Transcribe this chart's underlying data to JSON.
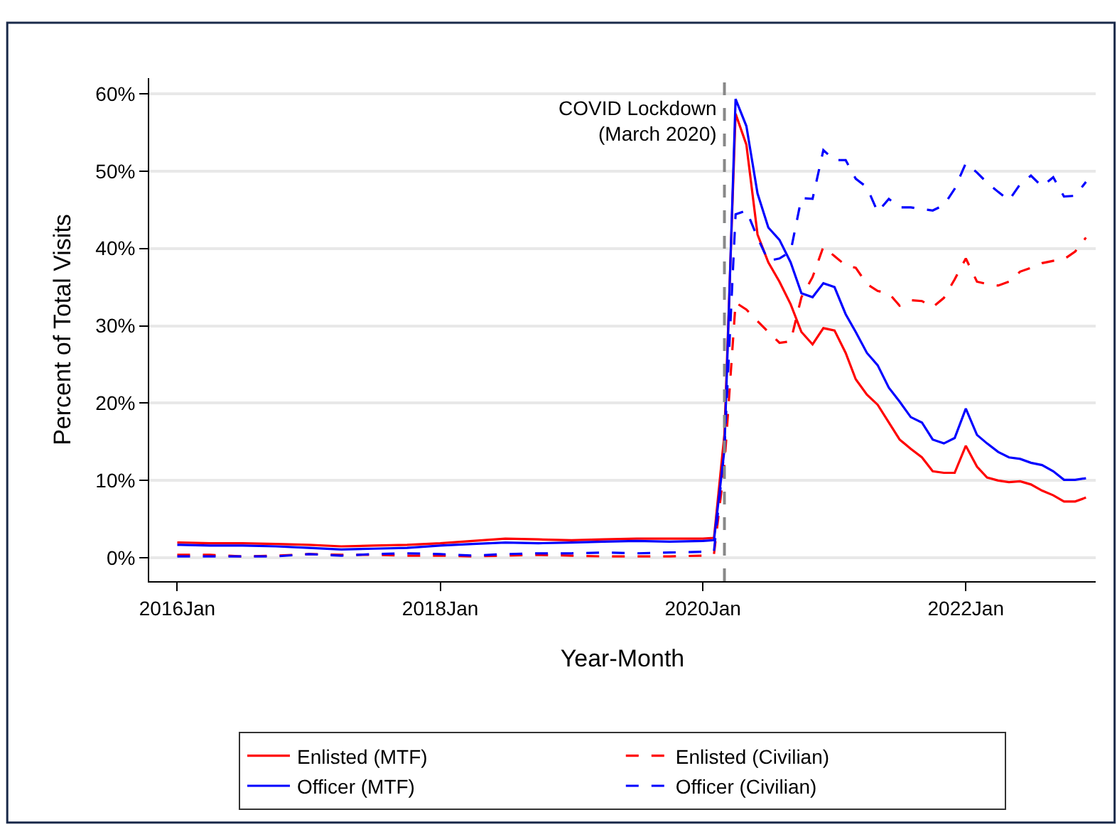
{
  "chart_data": {
    "type": "line",
    "xlabel": "Year-Month",
    "ylabel": "Percent of Total Visits",
    "x": [
      "2016-01",
      "2016-04",
      "2016-07",
      "2016-10",
      "2017-01",
      "2017-04",
      "2017-07",
      "2017-10",
      "2018-01",
      "2018-04",
      "2018-07",
      "2018-10",
      "2019-01",
      "2019-04",
      "2019-07",
      "2019-10",
      "2020-01",
      "2020-02",
      "2020-03",
      "2020-04",
      "2020-05",
      "2020-06",
      "2020-07",
      "2020-08",
      "2020-09",
      "2020-10",
      "2020-11",
      "2020-12",
      "2021-01",
      "2021-02",
      "2021-03",
      "2021-04",
      "2021-05",
      "2021-06",
      "2021-07",
      "2021-08",
      "2021-09",
      "2021-10",
      "2021-11",
      "2021-12",
      "2022-01",
      "2022-02",
      "2022-03",
      "2022-04",
      "2022-05",
      "2022-06",
      "2022-07",
      "2022-08",
      "2022-09",
      "2022-10",
      "2022-11",
      "2022-12"
    ],
    "series": [
      {
        "name": "Enlisted (MTF)",
        "color": "#ff0000",
        "line_style": "solid",
        "values": [
          2.0,
          1.9,
          1.9,
          1.8,
          1.7,
          1.5,
          1.6,
          1.7,
          1.9,
          2.2,
          2.5,
          2.4,
          2.3,
          2.4,
          2.5,
          2.5,
          2.5,
          2.6,
          16,
          57.4,
          53.4,
          41.8,
          38.2,
          35.7,
          32.8,
          29.2,
          27.6,
          29.7,
          29.4,
          26.5,
          23.1,
          21.1,
          19.8,
          17.5,
          15.3,
          14.1,
          13.0,
          11.2,
          11.0,
          11.0,
          14.5,
          11.8,
          10.4,
          10.0,
          9.8,
          9.9,
          9.5,
          8.7,
          8.1,
          7.3,
          7.3,
          7.8
        ]
      },
      {
        "name": "Enlisted (Civilian)",
        "color": "#ff0000",
        "line_style": "dashed",
        "values": [
          0.4,
          0.4,
          0.2,
          0.3,
          0.5,
          0.4,
          0.4,
          0.3,
          0.3,
          0.2,
          0.3,
          0.4,
          0.3,
          0.2,
          0.2,
          0.2,
          0.3,
          0.5,
          12,
          33.0,
          32.1,
          30.6,
          29.2,
          27.8,
          28.0,
          33.7,
          36.3,
          40.2,
          39.0,
          37.8,
          37.5,
          35.4,
          34.5,
          34.2,
          32.6,
          33.3,
          33.2,
          32.4,
          33.6,
          36.0,
          38.7,
          35.7,
          35.4,
          35.2,
          35.7,
          37.0,
          37.5,
          38.1,
          38.4,
          38.6,
          39.6,
          41.4
        ]
      },
      {
        "name": "Officer (MTF)",
        "color": "#0000ff",
        "line_style": "solid",
        "values": [
          1.7,
          1.6,
          1.6,
          1.5,
          1.3,
          1.1,
          1.2,
          1.3,
          1.6,
          1.8,
          2.0,
          1.9,
          2.0,
          2.1,
          2.2,
          2.1,
          2.2,
          2.3,
          14,
          59.3,
          55.8,
          47.1,
          42.7,
          41.1,
          38.2,
          34.2,
          33.7,
          35.5,
          35.0,
          31.5,
          29.2,
          26.5,
          24.9,
          22.0,
          20.2,
          18.2,
          17.5,
          15.3,
          14.8,
          15.5,
          19.3,
          15.9,
          14.8,
          13.7,
          13.0,
          12.8,
          12.3,
          12.0,
          11.2,
          10.1,
          10.1,
          10.3
        ]
      },
      {
        "name": "Officer (Civilian)",
        "color": "#0000ff",
        "line_style": "dashed",
        "values": [
          0.2,
          0.2,
          0.2,
          0.2,
          0.5,
          0.3,
          0.5,
          0.6,
          0.5,
          0.3,
          0.5,
          0.6,
          0.6,
          0.7,
          0.6,
          0.7,
          0.8,
          0.9,
          14,
          44.4,
          44.9,
          41.4,
          38.4,
          38.7,
          39.6,
          46.5,
          46.4,
          52.7,
          51.4,
          51.4,
          49.0,
          47.9,
          44.7,
          46.4,
          45.3,
          45.3,
          45.1,
          44.9,
          45.6,
          47.7,
          51.0,
          49.8,
          48.5,
          47.3,
          46.2,
          48.3,
          49.4,
          48.0,
          49.2,
          46.7,
          46.8,
          48.6
        ]
      }
    ],
    "xlim": [
      "2015-10-15",
      "2022-12-28"
    ],
    "xticks": [
      {
        "value": "2016-01-01",
        "label": "2016Jan"
      },
      {
        "value": "2018-01-01",
        "label": "2018Jan"
      },
      {
        "value": "2020-01-01",
        "label": "2020Jan"
      },
      {
        "value": "2022-01-01",
        "label": "2022Jan"
      }
    ],
    "ylim": [
      -3,
      62
    ],
    "yticks": [
      {
        "value": 0,
        "label": "0%"
      },
      {
        "value": 10,
        "label": "10%"
      },
      {
        "value": 20,
        "label": "20%"
      },
      {
        "value": 30,
        "label": "30%"
      },
      {
        "value": 40,
        "label": "40%"
      },
      {
        "value": 50,
        "label": "50%"
      },
      {
        "value": 60,
        "label": "60%"
      }
    ],
    "ref_lines": [
      {
        "axis": "x",
        "value": "2020-03-01",
        "label": "COVID Lockdown\n(March 2020)",
        "color": "#888888",
        "line_style": "dashed"
      }
    ],
    "grid": "y",
    "legend": "bottom",
    "marker": "none"
  }
}
